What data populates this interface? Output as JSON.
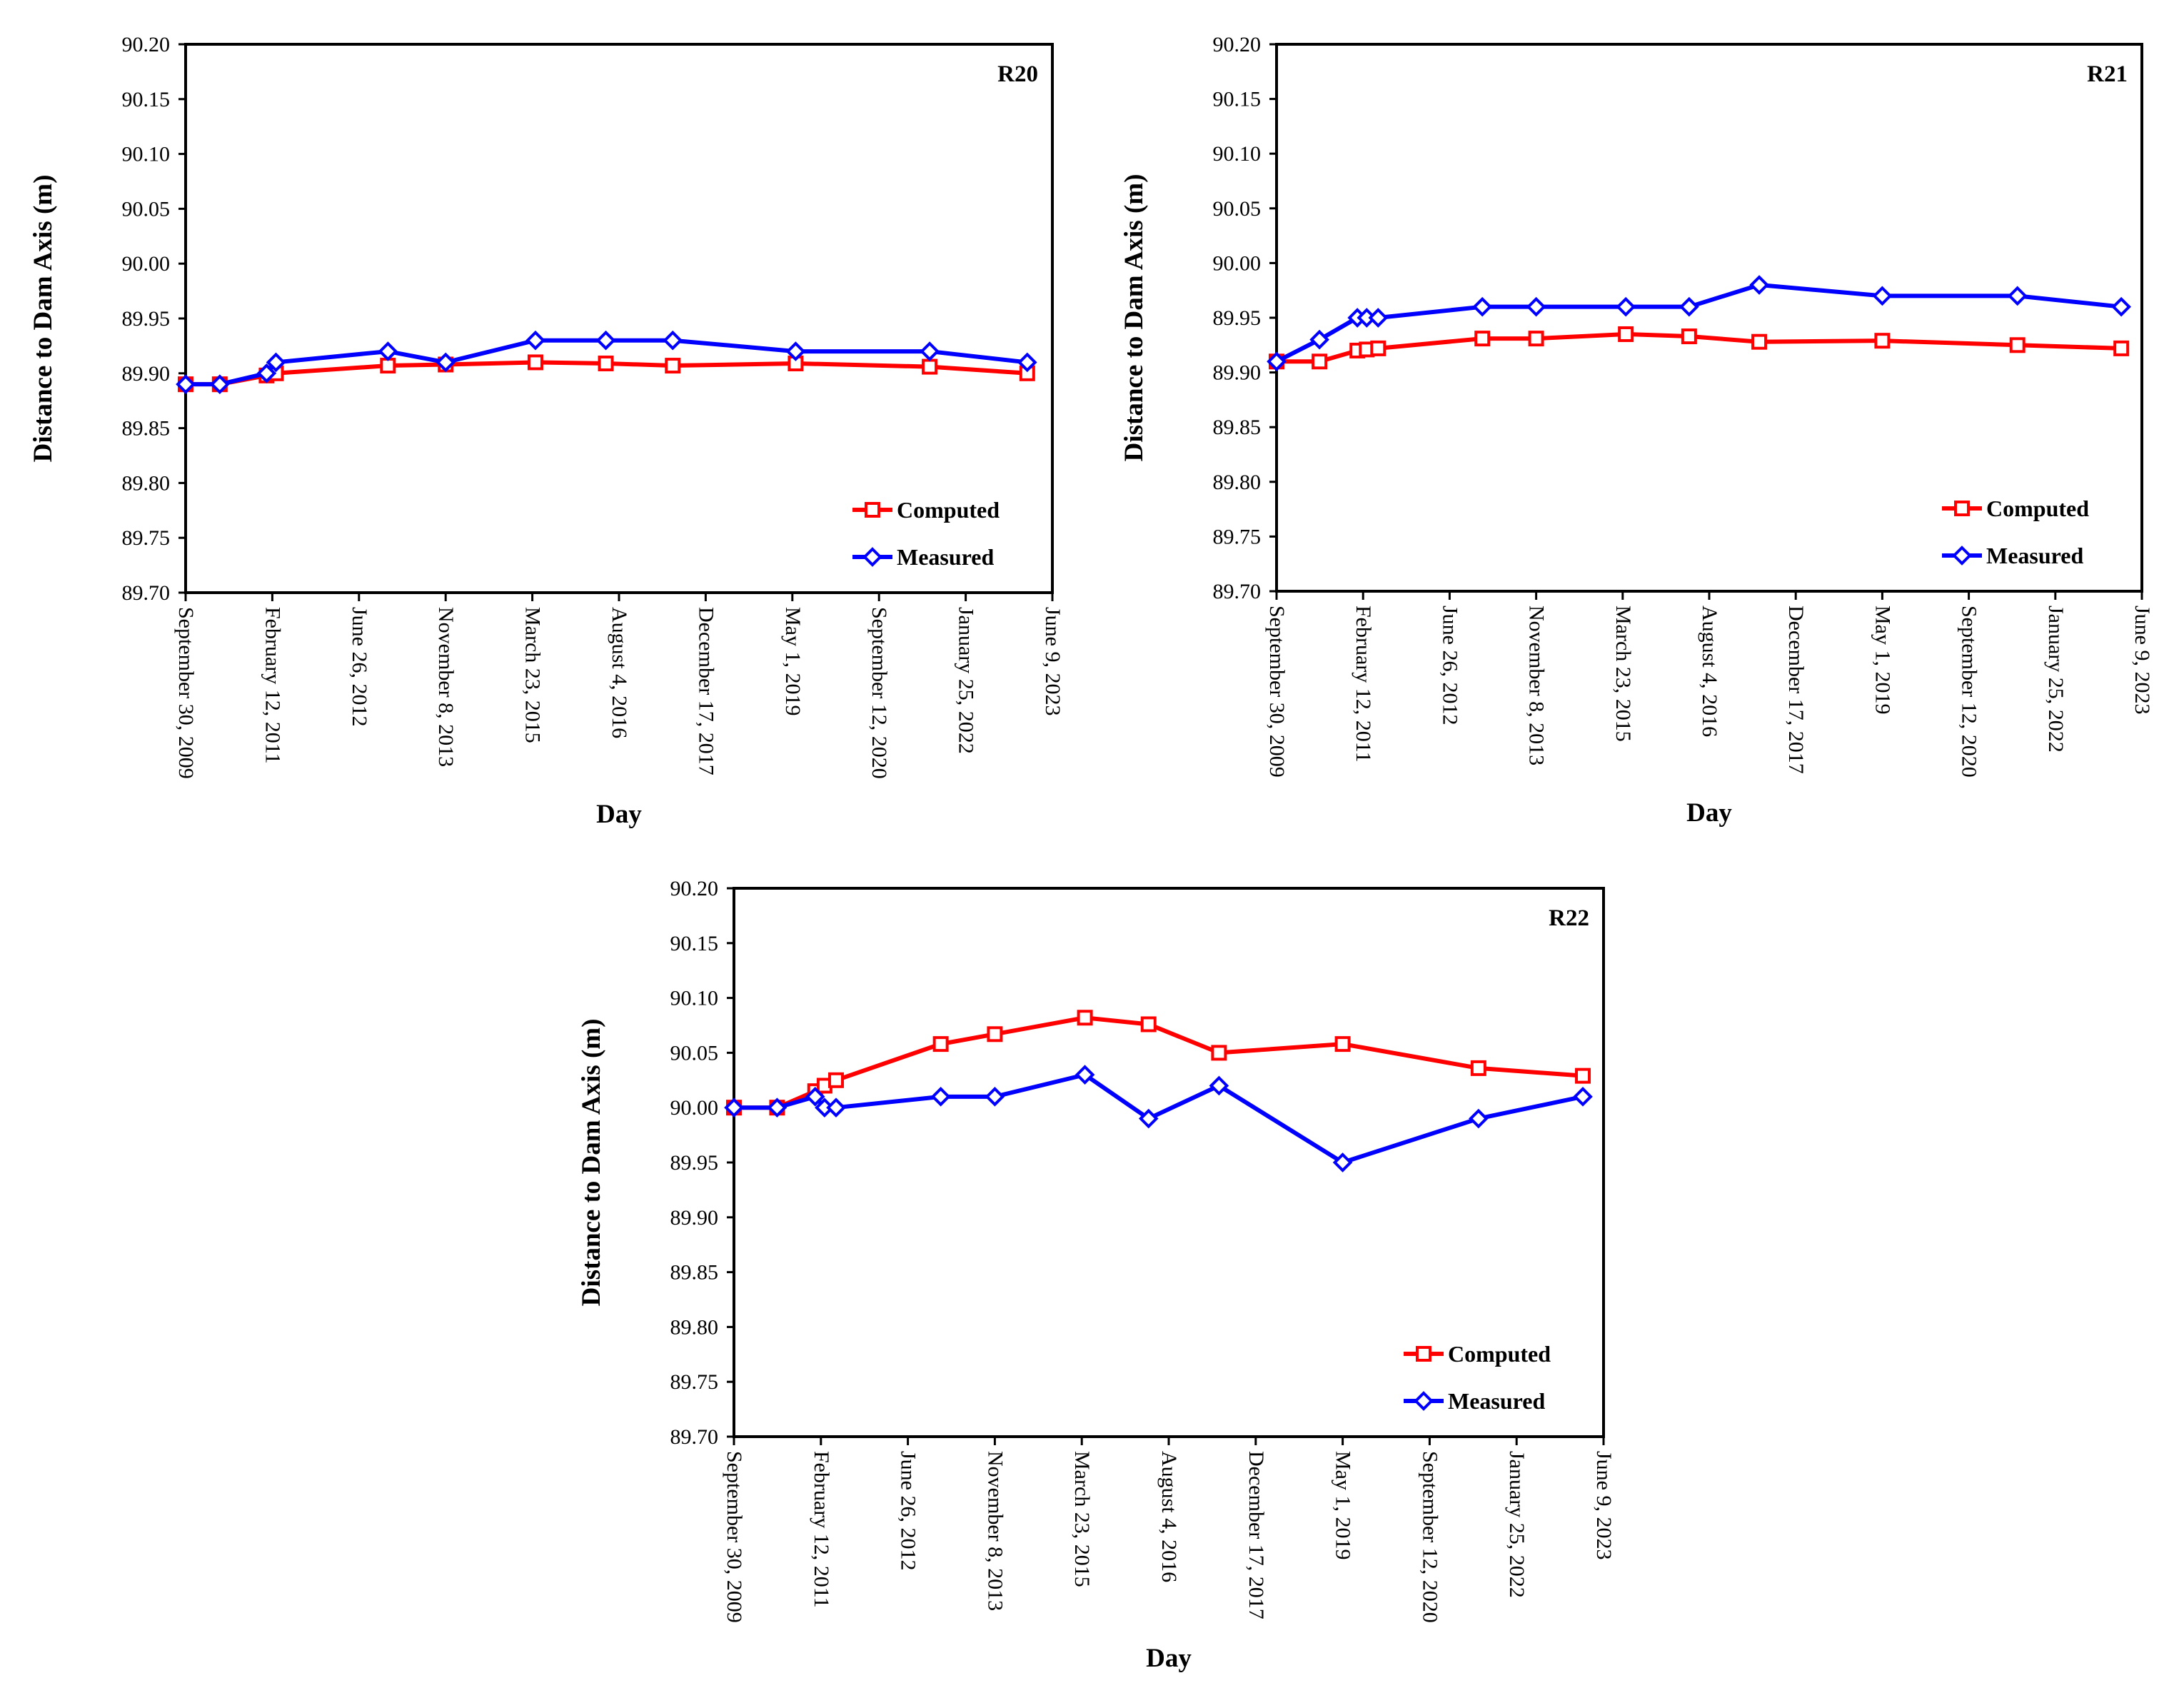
{
  "chart_data": [
    {
      "type": "line",
      "title": "R20",
      "xlabel": "Day",
      "ylabel": "Distance to Dam Axis (m)",
      "ylim": [
        89.7,
        90.2
      ],
      "yticks": [
        "89.70",
        "89.75",
        "89.80",
        "89.85",
        "89.90",
        "89.95",
        "90.00",
        "90.05",
        "90.10",
        "90.15",
        "90.20"
      ],
      "xlim": [
        "2009-09-30",
        "2023-06-09"
      ],
      "xticks": [
        {
          "date": "2009-09-30",
          "label": "September 30, 2009"
        },
        {
          "date": "2011-02-12",
          "label": "February 12, 2011"
        },
        {
          "date": "2012-06-26",
          "label": "June 26, 2012"
        },
        {
          "date": "2013-11-08",
          "label": "November 8, 2013"
        },
        {
          "date": "2015-03-23",
          "label": "March 23, 2015"
        },
        {
          "date": "2016-08-04",
          "label": "August 4, 2016"
        },
        {
          "date": "2017-12-17",
          "label": "December 17, 2017"
        },
        {
          "date": "2019-05-01",
          "label": "May 1, 2019"
        },
        {
          "date": "2020-09-12",
          "label": "September 12, 2020"
        },
        {
          "date": "2022-01-25",
          "label": "January 25, 2022"
        },
        {
          "date": "2023-06-09",
          "label": "June 9, 2023"
        }
      ],
      "legend_position": "bottom-right",
      "series": [
        {
          "name": "Computed",
          "color": "#ff0000",
          "marker": "square",
          "x": [
            "2009-09-30",
            "2010-04-15",
            "2011-01-10",
            "2011-03-05",
            "2012-12-10",
            "2013-11-08",
            "2015-04-10",
            "2016-05-20",
            "2017-06-10",
            "2019-05-20",
            "2021-07-01",
            "2023-01-15"
          ],
          "y": [
            89.89,
            89.89,
            89.898,
            89.9,
            89.907,
            89.908,
            89.91,
            89.909,
            89.907,
            89.909,
            89.906,
            89.9
          ]
        },
        {
          "name": "Measured",
          "color": "#0000ff",
          "marker": "diamond",
          "x": [
            "2009-09-30",
            "2010-04-15",
            "2011-01-10",
            "2011-03-05",
            "2012-12-10",
            "2013-11-08",
            "2015-04-10",
            "2016-05-20",
            "2017-06-10",
            "2019-05-20",
            "2021-07-01",
            "2023-01-15"
          ],
          "y": [
            89.89,
            89.89,
            89.9,
            89.91,
            89.92,
            89.91,
            89.93,
            89.93,
            89.93,
            89.92,
            89.92,
            89.91
          ]
        }
      ]
    },
    {
      "type": "line",
      "title": "R21",
      "xlabel": "Day",
      "ylabel": "Distance to Dam Axis (m)",
      "ylim": [
        89.7,
        90.2
      ],
      "yticks": [
        "89.70",
        "89.75",
        "89.80",
        "89.85",
        "89.90",
        "89.95",
        "90.00",
        "90.05",
        "90.10",
        "90.15",
        "90.20"
      ],
      "xlim": [
        "2009-09-30",
        "2023-06-09"
      ],
      "xticks": [
        {
          "date": "2009-09-30",
          "label": "September 30, 2009"
        },
        {
          "date": "2011-02-12",
          "label": "February 12, 2011"
        },
        {
          "date": "2012-06-26",
          "label": "June 26, 2012"
        },
        {
          "date": "2013-11-08",
          "label": "November 8, 2013"
        },
        {
          "date": "2015-03-23",
          "label": "March 23, 2015"
        },
        {
          "date": "2016-08-04",
          "label": "August 4, 2016"
        },
        {
          "date": "2017-12-17",
          "label": "December 17, 2017"
        },
        {
          "date": "2019-05-01",
          "label": "May 1, 2019"
        },
        {
          "date": "2020-09-12",
          "label": "September 12, 2020"
        },
        {
          "date": "2022-01-25",
          "label": "January 25, 2022"
        },
        {
          "date": "2023-06-09",
          "label": "June 9, 2023"
        }
      ],
      "legend_position": "bottom-right",
      "series": [
        {
          "name": "Computed",
          "color": "#ff0000",
          "marker": "square",
          "x": [
            "2009-09-30",
            "2010-06-05",
            "2011-01-10",
            "2011-03-05",
            "2011-05-10",
            "2013-01-01",
            "2013-11-08",
            "2015-04-10",
            "2016-04-10",
            "2017-05-20",
            "2019-05-01",
            "2021-06-20",
            "2023-02-10"
          ],
          "y": [
            89.91,
            89.91,
            89.92,
            89.921,
            89.922,
            89.931,
            89.931,
            89.935,
            89.933,
            89.928,
            89.929,
            89.925,
            89.922
          ]
        },
        {
          "name": "Measured",
          "color": "#0000ff",
          "marker": "diamond",
          "x": [
            "2009-09-30",
            "2010-06-05",
            "2011-01-10",
            "2011-03-05",
            "2011-05-10",
            "2013-01-01",
            "2013-11-08",
            "2015-04-10",
            "2016-04-10",
            "2017-05-20",
            "2019-05-01",
            "2021-06-20",
            "2023-02-10"
          ],
          "y": [
            89.91,
            89.93,
            89.95,
            89.95,
            89.95,
            89.96,
            89.96,
            89.96,
            89.96,
            89.98,
            89.97,
            89.97,
            89.96
          ]
        }
      ]
    },
    {
      "type": "line",
      "title": "R22",
      "xlabel": "Day",
      "ylabel": "Distance to Dam Axis (m)",
      "ylim": [
        89.7,
        90.2
      ],
      "yticks": [
        "89.70",
        "89.75",
        "89.80",
        "89.85",
        "89.90",
        "89.95",
        "90.00",
        "90.05",
        "90.10",
        "90.15",
        "90.20"
      ],
      "xlim": [
        "2009-09-30",
        "2023-06-09"
      ],
      "xticks": [
        {
          "date": "2009-09-30",
          "label": "September 30, 2009"
        },
        {
          "date": "2011-02-12",
          "label": "February 12, 2011"
        },
        {
          "date": "2012-06-26",
          "label": "June 26, 2012"
        },
        {
          "date": "2013-11-08",
          "label": "November 8, 2013"
        },
        {
          "date": "2015-03-23",
          "label": "March 23, 2015"
        },
        {
          "date": "2016-08-04",
          "label": "August 4, 2016"
        },
        {
          "date": "2017-12-17",
          "label": "December 17, 2017"
        },
        {
          "date": "2019-05-01",
          "label": "May 1, 2019"
        },
        {
          "date": "2020-09-12",
          "label": "September 12, 2020"
        },
        {
          "date": "2022-01-25",
          "label": "January 25, 2022"
        },
        {
          "date": "2023-06-09",
          "label": "June 9, 2023"
        }
      ],
      "legend_position": "bottom-right",
      "series": [
        {
          "name": "Computed",
          "color": "#ff0000",
          "marker": "square",
          "x": [
            "2009-09-30",
            "2010-06-05",
            "2011-01-10",
            "2011-03-05",
            "2011-05-10",
            "2013-01-01",
            "2013-11-08",
            "2015-04-10",
            "2016-04-10",
            "2017-05-20",
            "2019-05-01",
            "2021-06-20",
            "2023-02-10"
          ],
          "y": [
            90.0,
            90.0,
            90.015,
            90.02,
            90.025,
            90.058,
            90.067,
            90.082,
            90.076,
            90.05,
            90.058,
            90.036,
            90.029
          ]
        },
        {
          "name": "Measured",
          "color": "#0000ff",
          "marker": "diamond",
          "x": [
            "2009-09-30",
            "2010-06-05",
            "2011-01-10",
            "2011-03-05",
            "2011-05-10",
            "2013-01-01",
            "2013-11-08",
            "2015-04-10",
            "2016-04-10",
            "2017-05-20",
            "2019-05-01",
            "2021-06-20",
            "2023-02-10"
          ],
          "y": [
            90.0,
            90.0,
            90.01,
            90.0,
            90.0,
            90.01,
            90.01,
            90.03,
            89.99,
            90.02,
            89.95,
            89.99,
            90.01
          ]
        }
      ]
    }
  ]
}
